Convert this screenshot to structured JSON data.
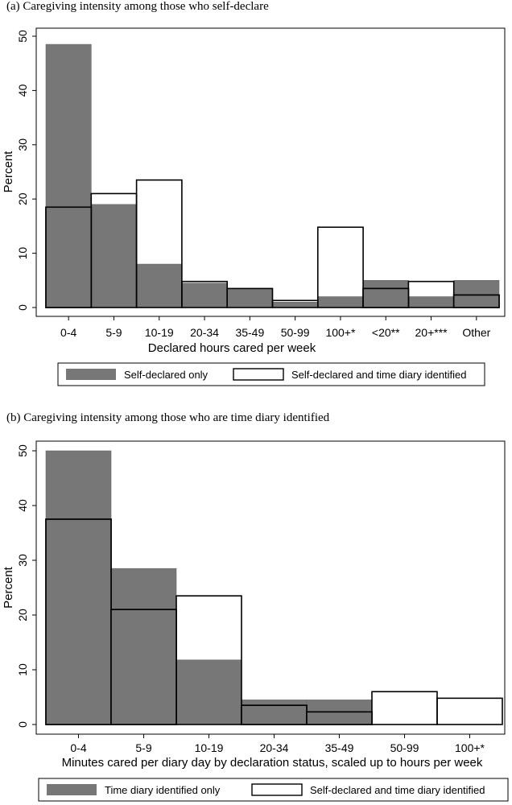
{
  "chart_data": [
    {
      "type": "bar",
      "title": "(a)  Caregiving intensity among those who self-declare",
      "xlabel": "Declared hours cared per week",
      "ylabel": "Percent",
      "ylim": [
        0,
        50
      ],
      "yticks": [
        0,
        10,
        20,
        30,
        40,
        50
      ],
      "categories": [
        "0-4",
        "5-9",
        "10-19",
        "20-34",
        "35-49",
        "50-99",
        "100+*",
        "<20**",
        "20+***",
        "Other"
      ],
      "series": [
        {
          "name": "Self-declared only",
          "color": "#777777",
          "values": [
            48.5,
            19.0,
            8.0,
            4.5,
            3.5,
            1.0,
            2.0,
            5.0,
            2.0,
            5.0
          ]
        },
        {
          "name": "Self-declared and time diary identified",
          "color": "#ffffff",
          "values": [
            18.5,
            21.0,
            23.5,
            4.8,
            3.5,
            1.3,
            14.8,
            3.5,
            4.8,
            2.3
          ]
        }
      ],
      "legend": "bottom",
      "grid": false
    },
    {
      "type": "bar",
      "title": "(b)  Caregiving intensity among those who are time diary identified",
      "xlabel": "Minutes cared per diary day by declaration status, scaled up to hours per week",
      "ylabel": "Percent",
      "ylim": [
        0,
        50
      ],
      "yticks": [
        0,
        10,
        20,
        30,
        40,
        50
      ],
      "categories": [
        "0-4",
        "5-9",
        "10-19",
        "20-34",
        "35-49",
        "50-99",
        "100+*"
      ],
      "series": [
        {
          "name": "Time diary identified only",
          "color": "#777777",
          "values": [
            50.0,
            28.5,
            11.8,
            4.5,
            4.5,
            0,
            0
          ]
        },
        {
          "name": "Self-declared and time diary identified",
          "color": "#ffffff",
          "values": [
            37.5,
            21.0,
            23.5,
            3.5,
            2.3,
            6.0,
            4.8
          ]
        }
      ],
      "legend": "bottom",
      "grid": false
    }
  ]
}
